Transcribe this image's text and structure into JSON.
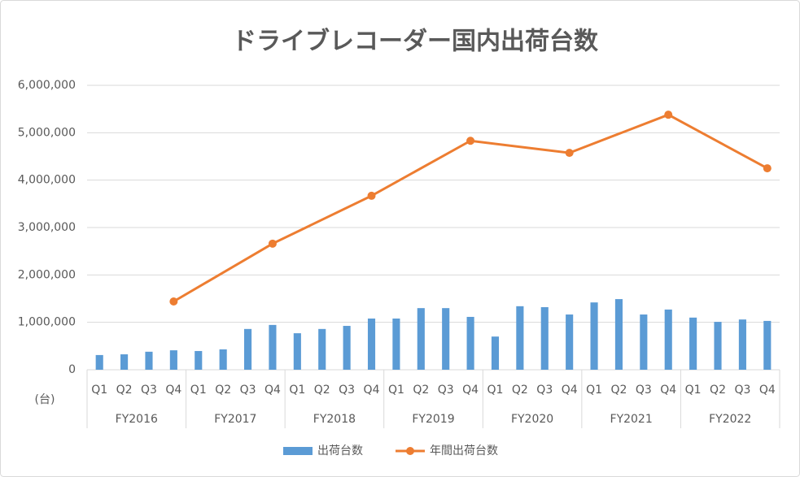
{
  "chart_data": {
    "type": "bar_line",
    "title": "ドライブレコーダー国内出荷台数",
    "y_unit_label": "(台)",
    "categories": [
      "Q1",
      "Q2",
      "Q3",
      "Q4",
      "Q1",
      "Q2",
      "Q3",
      "Q4",
      "Q1",
      "Q2",
      "Q3",
      "Q4",
      "Q1",
      "Q2",
      "Q3",
      "Q4",
      "Q1",
      "Q2",
      "Q3",
      "Q4",
      "Q1",
      "Q2",
      "Q3",
      "Q4",
      "Q1",
      "Q2",
      "Q3",
      "Q4"
    ],
    "groups": [
      "FY2016",
      "FY2017",
      "FY2018",
      "FY2019",
      "FY2020",
      "FY2021",
      "FY2022"
    ],
    "series": [
      {
        "name": "出荷台数",
        "type": "bar",
        "color": "#5b9bd5",
        "values": [
          310000,
          325000,
          380000,
          410000,
          395000,
          430000,
          860000,
          945000,
          770000,
          860000,
          925000,
          1080000,
          1080000,
          1300000,
          1300000,
          1115000,
          700000,
          1340000,
          1320000,
          1165000,
          1420000,
          1490000,
          1165000,
          1270000,
          1100000,
          1010000,
          1060000,
          1030000
        ]
      },
      {
        "name": "年間出荷台数",
        "type": "line",
        "color": "#ed7d31",
        "connect_gaps": true,
        "values": [
          null,
          null,
          null,
          1440000,
          null,
          null,
          null,
          2660000,
          null,
          null,
          null,
          3670000,
          null,
          null,
          null,
          4830000,
          null,
          null,
          null,
          4575000,
          null,
          null,
          null,
          5380000,
          null,
          null,
          null,
          4250000
        ]
      }
    ],
    "ylim": [
      0,
      6000000
    ],
    "yticks": [
      0,
      {
        "value": 1000000,
        "label": "1,000,000"
      },
      {
        "value": 2000000,
        "label": "2,000,000"
      },
      {
        "value": 3000000,
        "label": "3,000,000"
      },
      {
        "value": 4000000,
        "label": "4,000,000"
      },
      {
        "value": 5000000,
        "label": "5,000,000"
      },
      {
        "value": 6000000,
        "label": "6,000,000"
      }
    ],
    "grid": true,
    "legend": "bottom"
  }
}
